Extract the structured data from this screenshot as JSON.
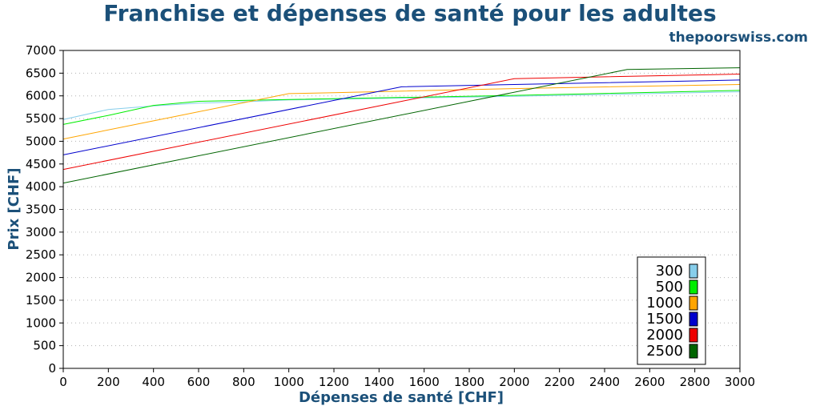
{
  "chart_data": {
    "type": "line",
    "title": "Franchise et dépenses de santé pour les adultes",
    "source": "thepoorswiss.com",
    "xlabel": "Dépenses de santé [CHF]",
    "ylabel": "Prix [CHF]",
    "xlim": [
      0,
      3000
    ],
    "ylim": [
      0,
      7000
    ],
    "xticks": [
      0,
      200,
      400,
      600,
      800,
      1000,
      1200,
      1400,
      1600,
      1800,
      2000,
      2200,
      2400,
      2600,
      2800,
      3000
    ],
    "yticks": [
      0,
      500,
      1000,
      1500,
      2000,
      2500,
      3000,
      3500,
      4000,
      4500,
      5000,
      5500,
      6000,
      6500,
      7000
    ],
    "grid": "horizontal dotted",
    "legend_position": "bottom-right",
    "series": [
      {
        "name": "300",
        "color": "#87ceeb",
        "points": [
          [
            0,
            5480
          ],
          [
            200,
            5700
          ],
          [
            400,
            5780
          ],
          [
            600,
            5840
          ],
          [
            800,
            5870
          ],
          [
            1000,
            5910
          ],
          [
            2000,
            5990
          ],
          [
            3000,
            6090
          ]
        ]
      },
      {
        "name": "500",
        "color": "#00ee00",
        "points": [
          [
            0,
            5370
          ],
          [
            200,
            5570
          ],
          [
            400,
            5790
          ],
          [
            600,
            5880
          ],
          [
            800,
            5900
          ],
          [
            1000,
            5920
          ],
          [
            2000,
            6010
          ],
          [
            3000,
            6120
          ]
        ]
      },
      {
        "name": "1000",
        "color": "#ffa500",
        "points": [
          [
            0,
            5050
          ],
          [
            500,
            5550
          ],
          [
            1000,
            6050
          ],
          [
            1200,
            6070
          ],
          [
            2000,
            6160
          ],
          [
            3000,
            6250
          ]
        ]
      },
      {
        "name": "1500",
        "color": "#0000cd",
        "points": [
          [
            0,
            4700
          ],
          [
            1500,
            6200
          ],
          [
            2000,
            6250
          ],
          [
            3000,
            6350
          ]
        ]
      },
      {
        "name": "2000",
        "color": "#ee0000",
        "points": [
          [
            0,
            4380
          ],
          [
            2000,
            6380
          ],
          [
            3000,
            6480
          ]
        ]
      },
      {
        "name": "2500",
        "color": "#006400",
        "points": [
          [
            0,
            4080
          ],
          [
            2500,
            6580
          ],
          [
            3000,
            6620
          ]
        ]
      }
    ]
  }
}
